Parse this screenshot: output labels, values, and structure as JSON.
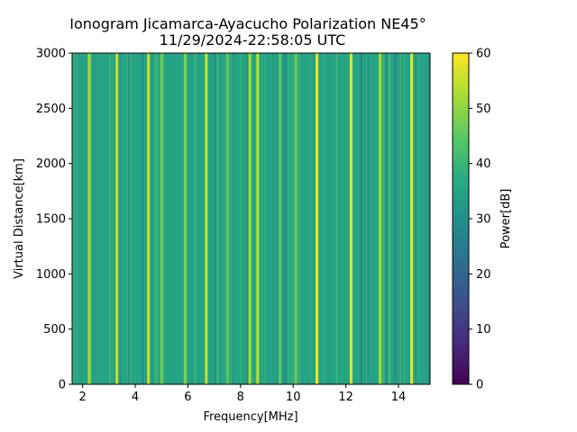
{
  "chart_data": {
    "type": "heatmap",
    "title": "Ionogram Jicamarca-Ayacucho Polarization NE45°",
    "subtitle": "11/29/2024-22:58:05 UTC",
    "xlabel": "Frequency[MHz]",
    "ylabel": "Virtual Distance[km]",
    "xlim": [
      1.6,
      15.2
    ],
    "ylim": [
      0,
      3000
    ],
    "xticks": [
      2,
      4,
      6,
      8,
      10,
      12,
      14
    ],
    "yticks": [
      0,
      500,
      1000,
      1500,
      2000,
      2500,
      3000
    ],
    "colorbar": {
      "label": "Power[dB]",
      "range": [
        0,
        60
      ],
      "ticks": [
        0,
        10,
        20,
        30,
        40,
        50,
        60
      ],
      "colormap": "viridis"
    },
    "grid": false,
    "background_power_db": 35,
    "bright_bands": [
      {
        "freq_mhz": 2.25,
        "power_db": 52
      },
      {
        "freq_mhz": 3.3,
        "power_db": 55
      },
      {
        "freq_mhz": 4.5,
        "power_db": 55
      },
      {
        "freq_mhz": 5.0,
        "power_db": 47
      },
      {
        "freq_mhz": 5.9,
        "power_db": 48
      },
      {
        "freq_mhz": 6.7,
        "power_db": 55
      },
      {
        "freq_mhz": 7.5,
        "power_db": 45
      },
      {
        "freq_mhz": 8.35,
        "power_db": 52
      },
      {
        "freq_mhz": 8.65,
        "power_db": 54
      },
      {
        "freq_mhz": 9.5,
        "power_db": 45
      },
      {
        "freq_mhz": 10.1,
        "power_db": 46
      },
      {
        "freq_mhz": 10.9,
        "power_db": 58
      },
      {
        "freq_mhz": 12.2,
        "power_db": 58
      },
      {
        "freq_mhz": 13.3,
        "power_db": 52
      },
      {
        "freq_mhz": 14.5,
        "power_db": 58
      }
    ]
  }
}
